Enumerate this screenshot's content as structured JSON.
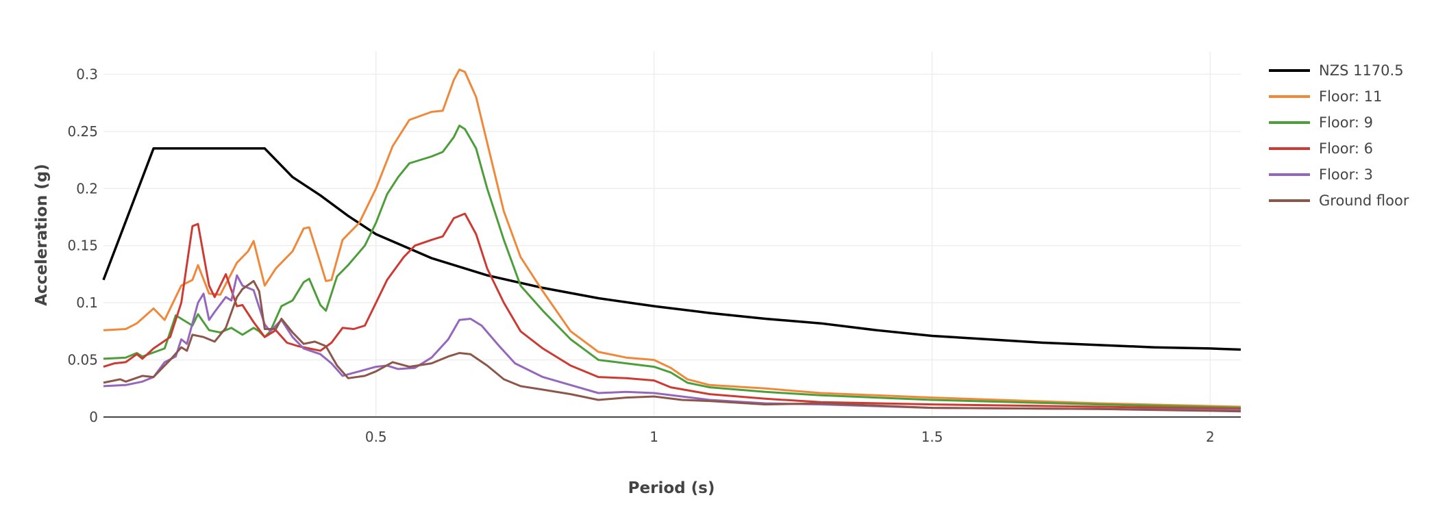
{
  "chart_data": {
    "type": "line",
    "title": "",
    "xlabel": "Period (s)",
    "ylabel": "Acceleration (g)",
    "xlim": [
      0.01,
      2.055
    ],
    "ylim": [
      0,
      0.32
    ],
    "xticks": [
      0.5,
      1,
      1.5,
      2
    ],
    "xtick_labels": [
      "0.5",
      "1",
      "1.5",
      "2"
    ],
    "yticks": [
      0,
      0.05,
      0.1,
      0.15,
      0.2,
      0.25,
      0.3
    ],
    "ytick_labels": [
      "0",
      "0.05",
      "0.1",
      "0.15",
      "0.2",
      "0.25",
      "0.3"
    ],
    "grid": true,
    "legend_position": "right",
    "series": [
      {
        "name": "NZS 1170.5",
        "color": "#000000",
        "x": [
          0.01,
          0.1,
          0.3,
          0.35,
          0.4,
          0.45,
          0.5,
          0.6,
          0.7,
          0.8,
          0.9,
          1.0,
          1.1,
          1.2,
          1.3,
          1.4,
          1.5,
          1.6,
          1.7,
          1.8,
          1.9,
          2.0,
          2.055
        ],
        "y": [
          0.12,
          0.235,
          0.235,
          0.21,
          0.194,
          0.176,
          0.16,
          0.139,
          0.124,
          0.113,
          0.104,
          0.097,
          0.091,
          0.086,
          0.082,
          0.076,
          0.071,
          0.068,
          0.065,
          0.063,
          0.061,
          0.06,
          0.059
        ]
      },
      {
        "name": "Floor: 11",
        "color": "#f0883a",
        "x": [
          0.01,
          0.05,
          0.07,
          0.1,
          0.12,
          0.15,
          0.17,
          0.18,
          0.2,
          0.22,
          0.25,
          0.27,
          0.28,
          0.3,
          0.32,
          0.35,
          0.37,
          0.38,
          0.4,
          0.41,
          0.42,
          0.44,
          0.47,
          0.5,
          0.53,
          0.56,
          0.6,
          0.62,
          0.64,
          0.65,
          0.66,
          0.68,
          0.7,
          0.73,
          0.76,
          0.8,
          0.85,
          0.9,
          0.95,
          1.0,
          1.03,
          1.06,
          1.1,
          1.2,
          1.3,
          1.5,
          1.8,
          2.055
        ],
        "y": [
          0.076,
          0.077,
          0.082,
          0.095,
          0.085,
          0.115,
          0.12,
          0.133,
          0.108,
          0.107,
          0.135,
          0.145,
          0.154,
          0.115,
          0.13,
          0.145,
          0.165,
          0.166,
          0.135,
          0.119,
          0.12,
          0.155,
          0.17,
          0.2,
          0.237,
          0.26,
          0.267,
          0.268,
          0.295,
          0.304,
          0.302,
          0.28,
          0.24,
          0.18,
          0.14,
          0.11,
          0.075,
          0.057,
          0.052,
          0.05,
          0.043,
          0.033,
          0.028,
          0.025,
          0.021,
          0.017,
          0.012,
          0.009
        ]
      },
      {
        "name": "Floor: 9",
        "color": "#4c9e3a",
        "x": [
          0.01,
          0.05,
          0.07,
          0.08,
          0.12,
          0.14,
          0.17,
          0.18,
          0.2,
          0.22,
          0.24,
          0.26,
          0.28,
          0.29,
          0.3,
          0.31,
          0.33,
          0.35,
          0.37,
          0.38,
          0.4,
          0.41,
          0.43,
          0.45,
          0.48,
          0.5,
          0.52,
          0.54,
          0.56,
          0.6,
          0.62,
          0.64,
          0.65,
          0.66,
          0.68,
          0.7,
          0.73,
          0.76,
          0.8,
          0.85,
          0.9,
          0.95,
          1.0,
          1.03,
          1.06,
          1.1,
          1.2,
          1.3,
          1.5,
          1.8,
          2.055
        ],
        "y": [
          0.051,
          0.052,
          0.056,
          0.053,
          0.06,
          0.089,
          0.08,
          0.09,
          0.076,
          0.074,
          0.078,
          0.072,
          0.078,
          0.075,
          0.07,
          0.075,
          0.097,
          0.102,
          0.118,
          0.121,
          0.098,
          0.093,
          0.123,
          0.133,
          0.15,
          0.17,
          0.195,
          0.21,
          0.222,
          0.228,
          0.232,
          0.245,
          0.255,
          0.252,
          0.235,
          0.2,
          0.155,
          0.115,
          0.093,
          0.068,
          0.05,
          0.047,
          0.044,
          0.039,
          0.03,
          0.026,
          0.022,
          0.019,
          0.015,
          0.011,
          0.008
        ]
      },
      {
        "name": "Floor: 6",
        "color": "#cc3a33",
        "x": [
          0.01,
          0.03,
          0.05,
          0.07,
          0.08,
          0.1,
          0.13,
          0.15,
          0.17,
          0.18,
          0.2,
          0.21,
          0.23,
          0.25,
          0.26,
          0.28,
          0.3,
          0.32,
          0.34,
          0.36,
          0.38,
          0.4,
          0.42,
          0.44,
          0.46,
          0.48,
          0.5,
          0.52,
          0.55,
          0.57,
          0.6,
          0.62,
          0.64,
          0.66,
          0.68,
          0.7,
          0.73,
          0.76,
          0.8,
          0.85,
          0.9,
          0.95,
          1.0,
          1.03,
          1.1,
          1.2,
          1.3,
          1.5,
          1.8,
          2.055
        ],
        "y": [
          0.044,
          0.047,
          0.048,
          0.055,
          0.051,
          0.06,
          0.07,
          0.1,
          0.167,
          0.169,
          0.115,
          0.105,
          0.125,
          0.097,
          0.098,
          0.083,
          0.07,
          0.076,
          0.065,
          0.062,
          0.06,
          0.058,
          0.065,
          0.078,
          0.077,
          0.08,
          0.1,
          0.12,
          0.14,
          0.15,
          0.155,
          0.158,
          0.174,
          0.178,
          0.16,
          0.13,
          0.1,
          0.075,
          0.06,
          0.045,
          0.035,
          0.034,
          0.032,
          0.026,
          0.02,
          0.016,
          0.013,
          0.011,
          0.009,
          0.007
        ]
      },
      {
        "name": "Floor: 3",
        "color": "#9467bd",
        "x": [
          0.01,
          0.05,
          0.08,
          0.1,
          0.12,
          0.14,
          0.15,
          0.16,
          0.18,
          0.19,
          0.2,
          0.21,
          0.23,
          0.24,
          0.25,
          0.26,
          0.28,
          0.3,
          0.31,
          0.33,
          0.35,
          0.37,
          0.4,
          0.42,
          0.44,
          0.47,
          0.5,
          0.52,
          0.54,
          0.57,
          0.6,
          0.63,
          0.65,
          0.67,
          0.69,
          0.72,
          0.75,
          0.8,
          0.85,
          0.9,
          0.95,
          1.0,
          1.05,
          1.1,
          1.2,
          1.3,
          1.5,
          1.8,
          2.055
        ],
        "y": [
          0.027,
          0.028,
          0.031,
          0.035,
          0.048,
          0.053,
          0.068,
          0.064,
          0.1,
          0.108,
          0.085,
          0.092,
          0.105,
          0.102,
          0.124,
          0.115,
          0.111,
          0.081,
          0.075,
          0.085,
          0.07,
          0.06,
          0.055,
          0.047,
          0.036,
          0.04,
          0.044,
          0.045,
          0.042,
          0.043,
          0.052,
          0.068,
          0.085,
          0.086,
          0.08,
          0.063,
          0.047,
          0.035,
          0.028,
          0.021,
          0.022,
          0.021,
          0.018,
          0.015,
          0.012,
          0.011,
          0.008,
          0.007,
          0.006
        ]
      },
      {
        "name": "Ground floor",
        "color": "#8c564b",
        "x": [
          0.01,
          0.04,
          0.05,
          0.08,
          0.1,
          0.13,
          0.15,
          0.16,
          0.17,
          0.19,
          0.21,
          0.23,
          0.25,
          0.26,
          0.28,
          0.29,
          0.3,
          0.32,
          0.33,
          0.35,
          0.37,
          0.39,
          0.41,
          0.43,
          0.45,
          0.48,
          0.5,
          0.53,
          0.56,
          0.6,
          0.63,
          0.65,
          0.67,
          0.7,
          0.73,
          0.76,
          0.8,
          0.85,
          0.9,
          0.95,
          1.0,
          1.05,
          1.1,
          1.2,
          1.3,
          1.5,
          1.8,
          2.055
        ],
        "y": [
          0.03,
          0.033,
          0.031,
          0.036,
          0.035,
          0.05,
          0.061,
          0.058,
          0.072,
          0.07,
          0.066,
          0.078,
          0.105,
          0.112,
          0.119,
          0.11,
          0.077,
          0.077,
          0.086,
          0.074,
          0.064,
          0.066,
          0.062,
          0.045,
          0.034,
          0.036,
          0.04,
          0.048,
          0.044,
          0.047,
          0.053,
          0.056,
          0.055,
          0.045,
          0.033,
          0.027,
          0.024,
          0.02,
          0.015,
          0.017,
          0.018,
          0.015,
          0.014,
          0.011,
          0.012,
          0.008,
          0.007,
          0.005
        ]
      }
    ]
  }
}
